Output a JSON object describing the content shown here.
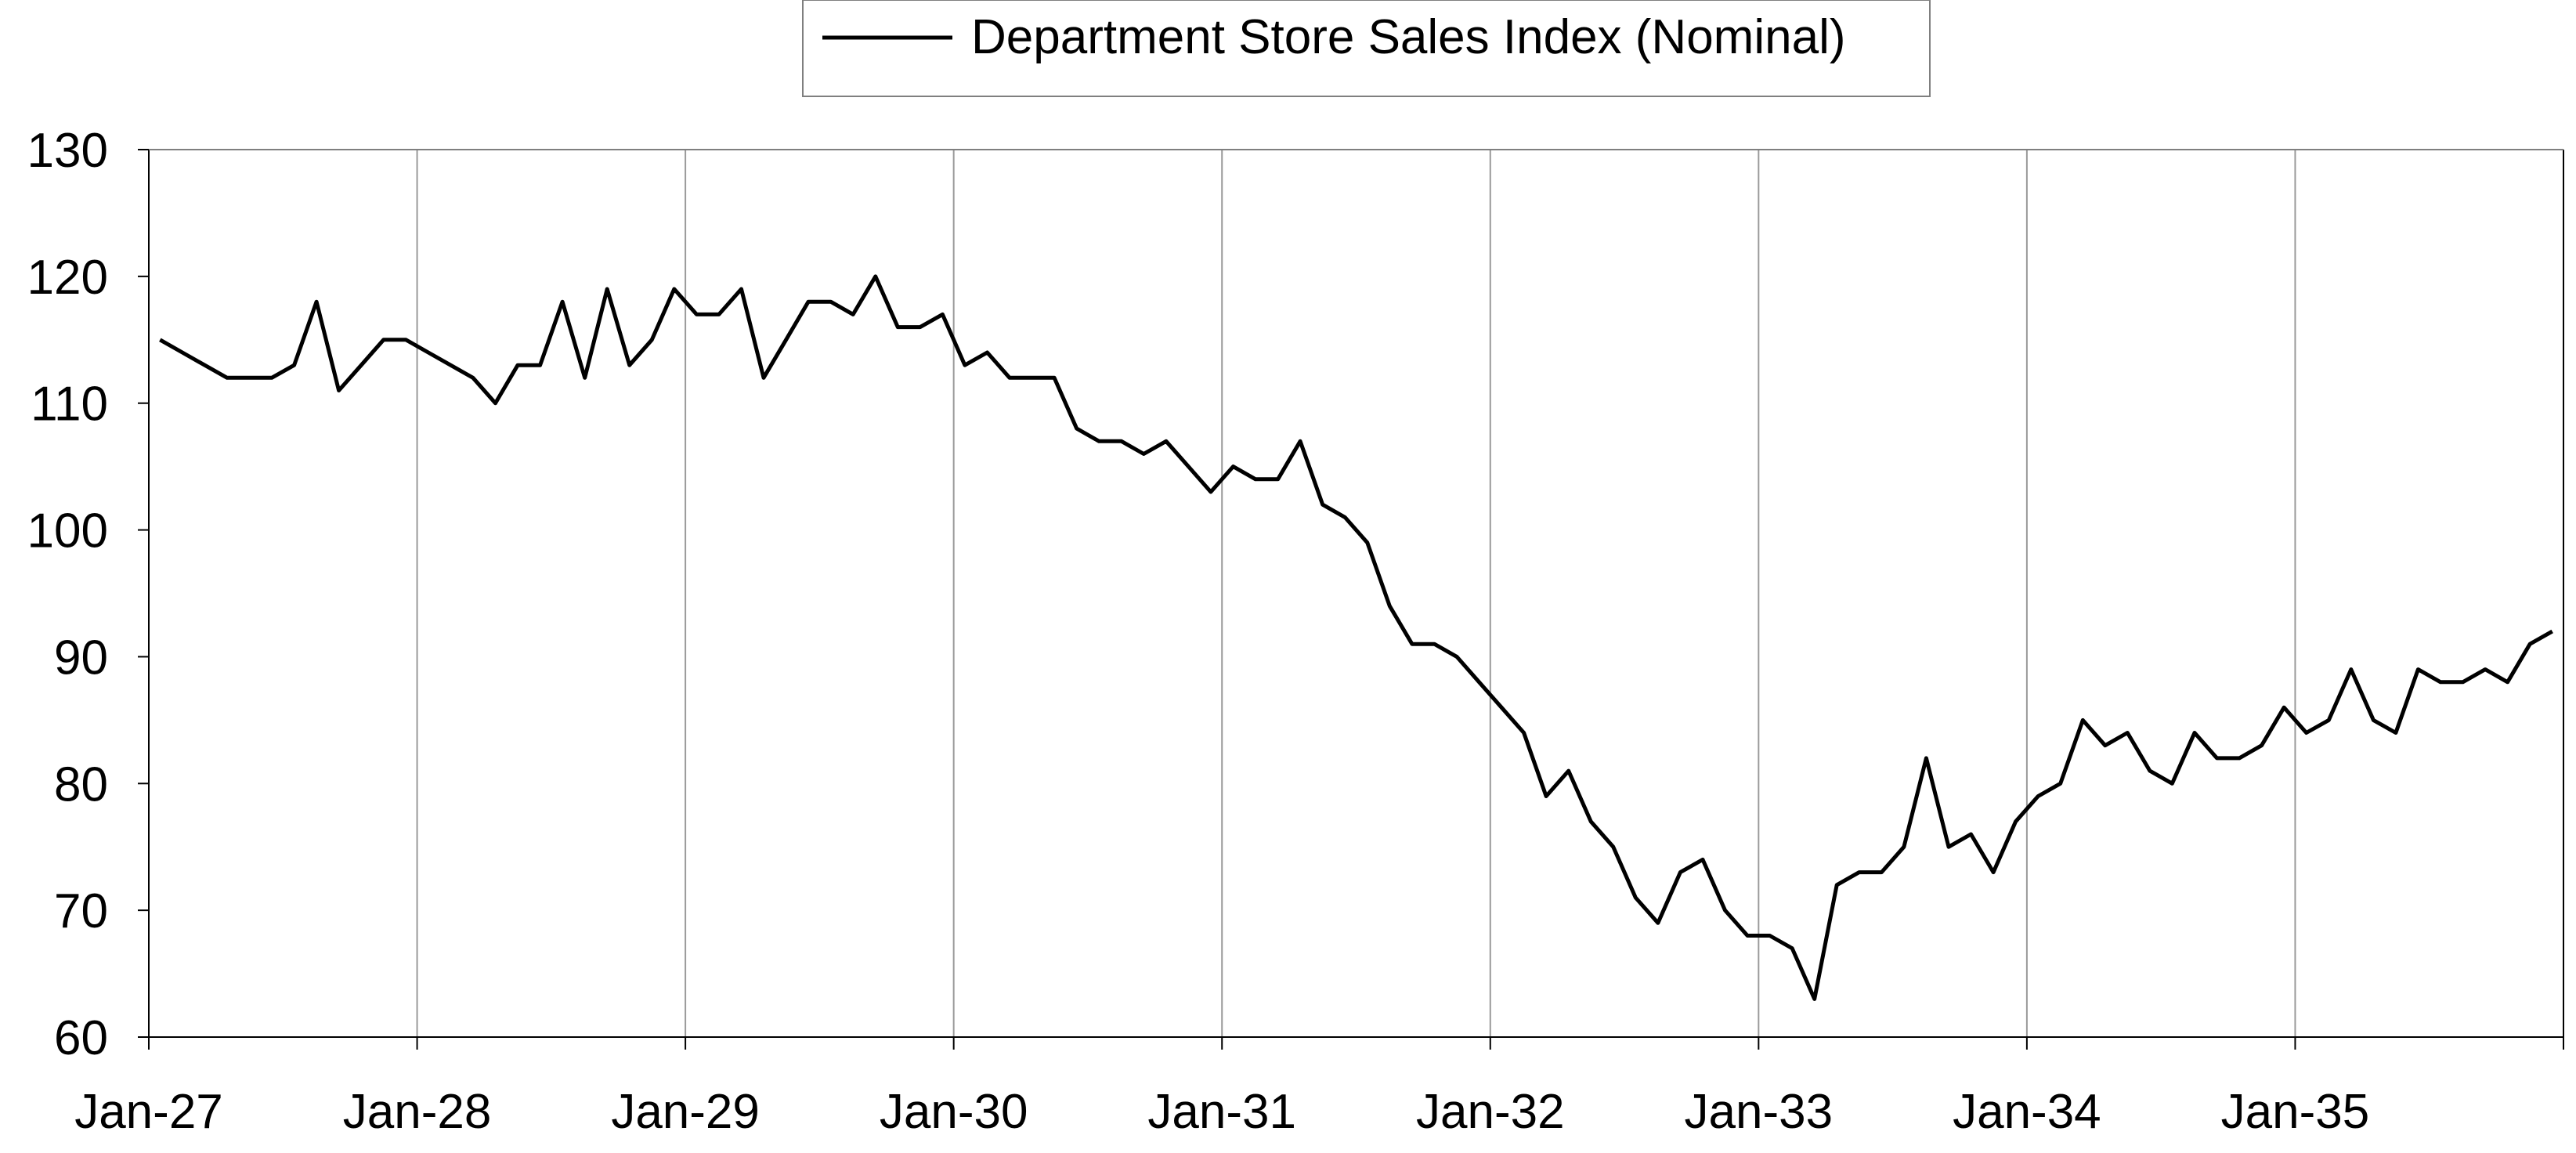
{
  "chart_data": {
    "type": "line",
    "title": "",
    "xlabel": "",
    "ylabel": "",
    "ylim": [
      60,
      130
    ],
    "yticks": [
      60,
      70,
      80,
      90,
      100,
      110,
      120,
      130
    ],
    "x_tick_labels": [
      "Jan-27",
      "Jan-28",
      "Jan-29",
      "Jan-30",
      "Jan-31",
      "Jan-32",
      "Jan-33",
      "Jan-34",
      "Jan-35"
    ],
    "x_start": "Jan-27",
    "x_end": "Dec-35",
    "grid": "vertical",
    "legend": "top",
    "line_color": "#000000",
    "series": [
      {
        "name": "Department Store Sales Index (Nominal)",
        "values": [
          115,
          114,
          113,
          112,
          112,
          112,
          113,
          118,
          111,
          113,
          115,
          115,
          114,
          113,
          112,
          110,
          113,
          113,
          118,
          112,
          119,
          113,
          115,
          119,
          117,
          117,
          119,
          112,
          115,
          118,
          118,
          117,
          120,
          116,
          116,
          117,
          113,
          114,
          112,
          112,
          112,
          108,
          107,
          107,
          106,
          107,
          105,
          103,
          105,
          104,
          104,
          107,
          102,
          101,
          99,
          94,
          91,
          91,
          90,
          88,
          86,
          84,
          79,
          81,
          77,
          75,
          71,
          69,
          73,
          74,
          70,
          68,
          68,
          67,
          63,
          72,
          73,
          73,
          75,
          82,
          75,
          76,
          73,
          77,
          79,
          80,
          85,
          83,
          84,
          81,
          80,
          84,
          82,
          82,
          83,
          86,
          84,
          85,
          89,
          85,
          84,
          89,
          88,
          88,
          89,
          88,
          91,
          92
        ]
      }
    ]
  }
}
